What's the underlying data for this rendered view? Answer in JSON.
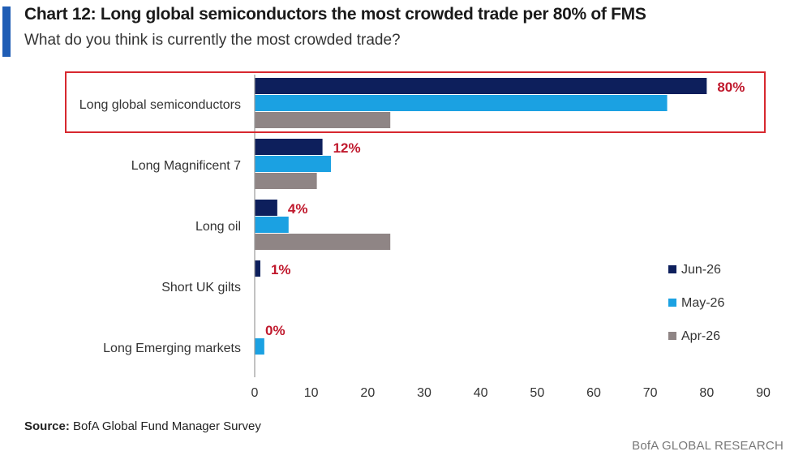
{
  "header": {
    "title": "Chart 12: Long global semiconductors the most crowded trade per 80% of FMS",
    "subtitle": "What do you think is currently the most crowded trade?"
  },
  "footer": {
    "source_label": "Source:",
    "source_text": " BofA Global Fund Manager Survey",
    "brand": "BofA GLOBAL RESEARCH"
  },
  "chart_data": {
    "type": "bar",
    "orientation": "horizontal",
    "categories": [
      "Long global semiconductors",
      "Long Magnificent 7",
      "Long oil",
      "Short UK gilts",
      "Long Emerging markets"
    ],
    "series": [
      {
        "name": "Jun-26",
        "color": "#0d1f5c",
        "values": [
          80,
          12,
          4,
          1,
          0
        ]
      },
      {
        "name": "May-26",
        "color": "#1ba1e2",
        "values": [
          73,
          13.5,
          6,
          0,
          1.7
        ]
      },
      {
        "name": "Apr-26",
        "color": "#8f8585",
        "values": [
          24,
          11,
          24,
          0,
          0
        ]
      }
    ],
    "data_labels": [
      "80%",
      "12%",
      "4%",
      "1%",
      "0%"
    ],
    "data_label_color": "#c0182c",
    "xlim": [
      0,
      90
    ],
    "xticks": [
      0,
      10,
      20,
      30,
      40,
      50,
      60,
      70,
      80,
      90
    ],
    "grid": false,
    "legend_position": "right",
    "highlight_category": "Long global semiconductors",
    "highlight_color": "#d7282f"
  }
}
